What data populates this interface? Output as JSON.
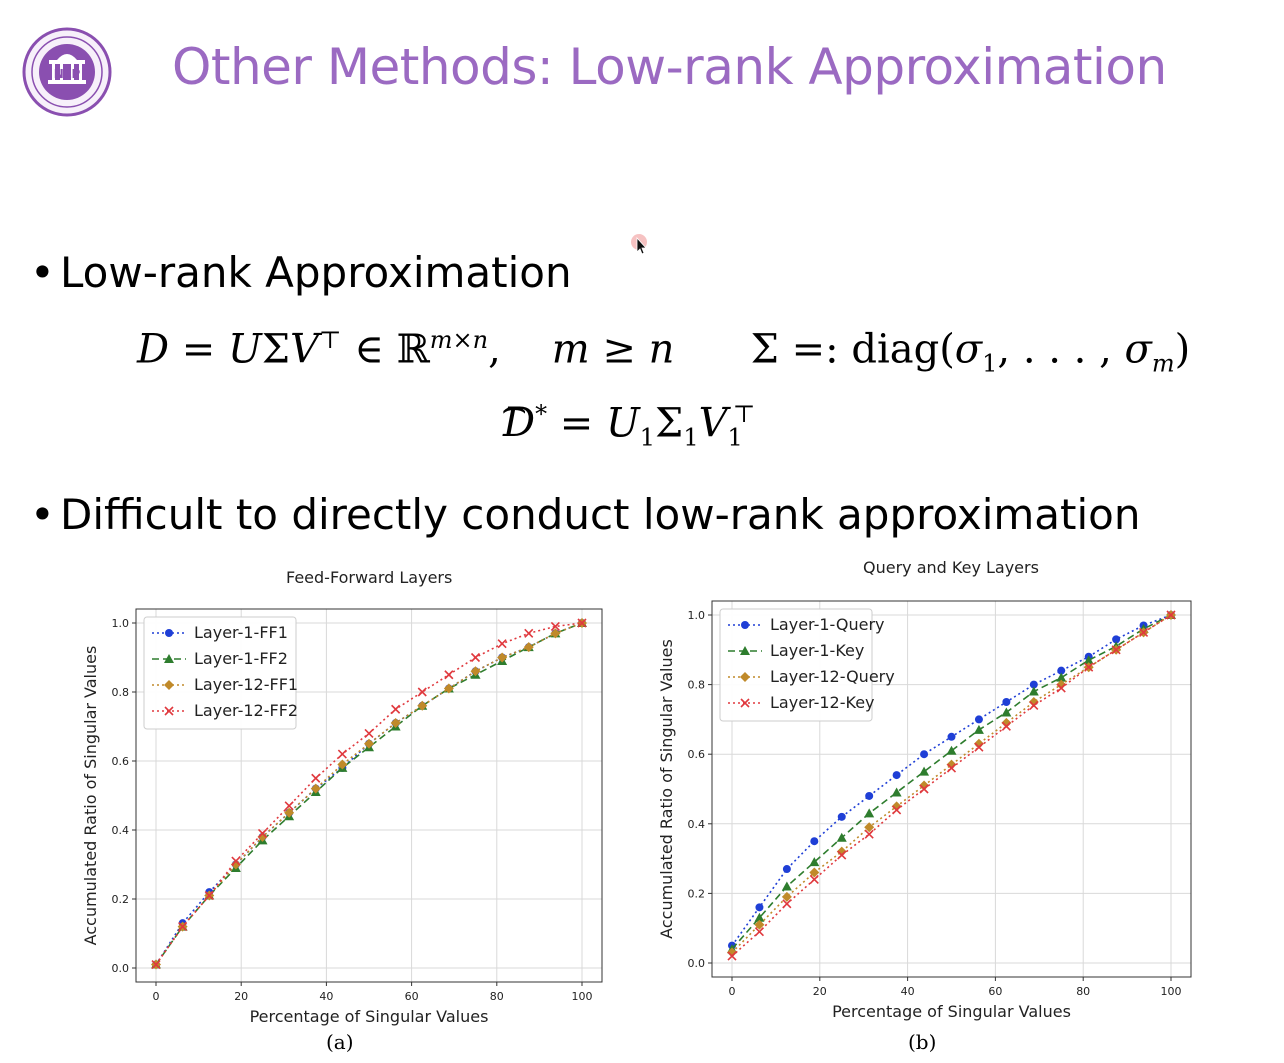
{
  "slide": {
    "title": "Other Methods: Low-rank Approximation",
    "logo_icon": "tsinghua-nlp-seal",
    "cursor_icon": "mouse-pointer-icon",
    "accent_color": "#9b6ac2",
    "bullets": [
      "Low-rank Approximation",
      "Difficult to directly conduct low-rank approximation"
    ],
    "equation_1": "D = UΣV⊤ ∈ ℝm×n,   m ≥ n     Σ =: diag(σ1, . . . , σm)",
    "equation_2": "D̂* = U1Σ1V1⊤"
  },
  "chart_data": [
    {
      "type": "line",
      "title": "Feed-Forward Layers",
      "caption": "(a)",
      "xlabel": "Percentage of Singular Values",
      "ylabel": "Accumulated Ratio of Singular Values",
      "xlim": [
        0,
        100
      ],
      "ylim": [
        0,
        1.0
      ],
      "xticks": [
        0,
        20,
        40,
        60,
        80,
        100
      ],
      "yticks": [
        0.0,
        0.2,
        0.4,
        0.6,
        0.8,
        1.0
      ],
      "grid": true,
      "legend_position": "top-left",
      "x": [
        0,
        6.25,
        12.5,
        18.75,
        25,
        31.25,
        37.5,
        43.75,
        50,
        56.25,
        62.5,
        68.75,
        75,
        81.25,
        87.5,
        93.75,
        100
      ],
      "series": [
        {
          "name": "Layer-1-FF1",
          "color": "#1f3fd6",
          "marker": "circle",
          "dash": "dotted",
          "values": [
            0.01,
            0.13,
            0.22,
            0.3,
            0.38,
            0.45,
            0.52,
            0.58,
            0.65,
            0.71,
            0.76,
            0.81,
            0.86,
            0.9,
            0.93,
            0.97,
            1.0
          ]
        },
        {
          "name": "Layer-1-FF2",
          "color": "#2e7d2e",
          "marker": "triangle",
          "dash": "dashed",
          "values": [
            0.01,
            0.12,
            0.21,
            0.29,
            0.37,
            0.44,
            0.51,
            0.58,
            0.64,
            0.7,
            0.76,
            0.81,
            0.85,
            0.89,
            0.93,
            0.97,
            1.0
          ]
        },
        {
          "name": "Layer-12-FF1",
          "color": "#c08a2a",
          "marker": "diamond",
          "dash": "dotted",
          "values": [
            0.01,
            0.12,
            0.21,
            0.3,
            0.38,
            0.45,
            0.52,
            0.59,
            0.65,
            0.71,
            0.76,
            0.81,
            0.86,
            0.9,
            0.93,
            0.97,
            1.0
          ]
        },
        {
          "name": "Layer-12-FF2",
          "color": "#e0393e",
          "marker": "x",
          "dash": "dotted",
          "values": [
            0.01,
            0.12,
            0.21,
            0.31,
            0.39,
            0.47,
            0.55,
            0.62,
            0.68,
            0.75,
            0.8,
            0.85,
            0.9,
            0.94,
            0.97,
            0.99,
            1.0
          ]
        }
      ]
    },
    {
      "type": "line",
      "title": "Query and Key Layers",
      "caption": "(b)",
      "xlabel": "Percentage of Singular Values",
      "ylabel": "Accumulated Ratio of Singular Values",
      "xlim": [
        0,
        100
      ],
      "ylim": [
        0,
        1.0
      ],
      "xticks": [
        0,
        20,
        40,
        60,
        80,
        100
      ],
      "yticks": [
        0.0,
        0.2,
        0.4,
        0.6,
        0.8,
        1.0
      ],
      "grid": true,
      "legend_position": "top-left",
      "x": [
        0,
        6.25,
        12.5,
        18.75,
        25,
        31.25,
        37.5,
        43.75,
        50,
        56.25,
        62.5,
        68.75,
        75,
        81.25,
        87.5,
        93.75,
        100
      ],
      "series": [
        {
          "name": "Layer-1-Query",
          "color": "#1f3fd6",
          "marker": "circle",
          "dash": "dotted",
          "values": [
            0.05,
            0.16,
            0.27,
            0.35,
            0.42,
            0.48,
            0.54,
            0.6,
            0.65,
            0.7,
            0.75,
            0.8,
            0.84,
            0.88,
            0.93,
            0.97,
            1.0
          ]
        },
        {
          "name": "Layer-1-Key",
          "color": "#2e7d2e",
          "marker": "triangle",
          "dash": "dashed",
          "values": [
            0.04,
            0.13,
            0.22,
            0.29,
            0.36,
            0.43,
            0.49,
            0.55,
            0.61,
            0.67,
            0.72,
            0.78,
            0.82,
            0.87,
            0.91,
            0.96,
            1.0
          ]
        },
        {
          "name": "Layer-12-Query",
          "color": "#c08a2a",
          "marker": "diamond",
          "dash": "dotted",
          "values": [
            0.03,
            0.11,
            0.19,
            0.26,
            0.32,
            0.39,
            0.45,
            0.51,
            0.57,
            0.63,
            0.69,
            0.75,
            0.8,
            0.85,
            0.9,
            0.95,
            1.0
          ]
        },
        {
          "name": "Layer-12-Key",
          "color": "#e0393e",
          "marker": "x",
          "dash": "dotted",
          "values": [
            0.02,
            0.09,
            0.17,
            0.24,
            0.31,
            0.37,
            0.44,
            0.5,
            0.56,
            0.62,
            0.68,
            0.74,
            0.79,
            0.85,
            0.9,
            0.95,
            1.0
          ]
        }
      ]
    }
  ]
}
